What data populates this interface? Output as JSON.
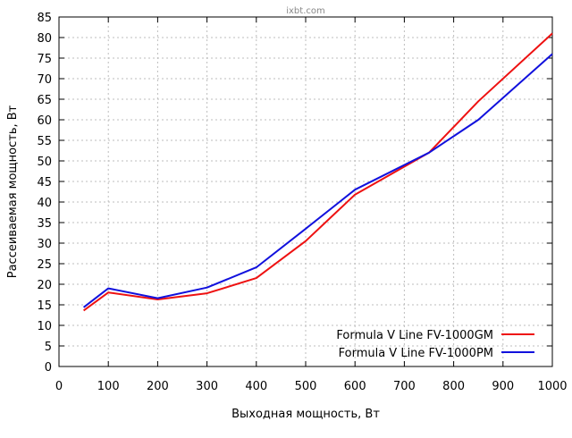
{
  "watermark": "ixbt.com",
  "chart_data": {
    "type": "line",
    "title": "",
    "xlabel": "Выходная мощность, Вт",
    "ylabel": "Рассеиваемая мощность, Вт",
    "xlim": [
      0,
      1000
    ],
    "ylim": [
      0,
      85
    ],
    "xticks": [
      0,
      100,
      200,
      300,
      400,
      500,
      600,
      700,
      800,
      900,
      1000
    ],
    "yticks": [
      0,
      5,
      10,
      15,
      20,
      25,
      30,
      35,
      40,
      45,
      50,
      55,
      60,
      65,
      70,
      75,
      80,
      85
    ],
    "grid": true,
    "legend_position": "bottom-right",
    "series": [
      {
        "name": "Formula V Line FV-1000GM",
        "color": "#ee1111",
        "x": [
          50,
          100,
          200,
          300,
          400,
          500,
          600,
          750,
          850,
          1000
        ],
        "y": [
          13.6,
          18.0,
          16.3,
          17.8,
          21.5,
          30.5,
          41.8,
          52.0,
          64.5,
          81.0
        ]
      },
      {
        "name": "Formula V Line FV-1000PM",
        "color": "#1111dd",
        "x": [
          50,
          100,
          200,
          300,
          400,
          500,
          600,
          750,
          850,
          1000
        ],
        "y": [
          14.4,
          19.0,
          16.6,
          19.2,
          24.1,
          33.5,
          43.0,
          52.0,
          60.0,
          76.0
        ]
      }
    ]
  }
}
